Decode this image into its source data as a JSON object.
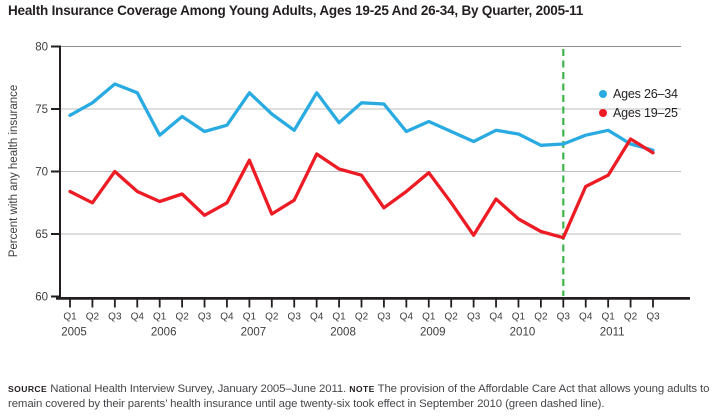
{
  "title": "Health Insurance Coverage Among Young Adults, Ages 19-25 And 26-34, By Quarter, 2005-11",
  "legend": {
    "items": [
      {
        "label": "Ages 26–34"
      },
      {
        "label": "Ages 19–25"
      }
    ]
  },
  "footer": {
    "source_label": "SOURCE",
    "source_text": "National Health Interview Survey, January 2005–June 2011.",
    "note_label": "NOTE",
    "note_text": "The provision of the Affordable Care Act that allows young adults to remain covered by their parents’ health insurance until age twenty-six took effect in September 2010 (green dashed line)."
  },
  "chart_data": {
    "type": "line",
    "title": "Health Insurance Coverage Among Young Adults, Ages 19-25 And 26-34, By Quarter, 2005-11",
    "xlabel": "",
    "ylabel": "Percent with any health insurance",
    "ylim": [
      60,
      80
    ],
    "yticks": [
      60,
      65,
      70,
      75,
      80
    ],
    "grid": "horizontal",
    "legend_position": "top-right",
    "categories": [
      "2005 Q1",
      "2005 Q2",
      "2005 Q3",
      "2005 Q4",
      "2006 Q1",
      "2006 Q2",
      "2006 Q3",
      "2006 Q4",
      "2007 Q1",
      "2007 Q2",
      "2007 Q3",
      "2007 Q4",
      "2008 Q1",
      "2008 Q2",
      "2008 Q3",
      "2008 Q4",
      "2009 Q1",
      "2009 Q2",
      "2009 Q3",
      "2009 Q4",
      "2010 Q1",
      "2010 Q2",
      "2010 Q3",
      "2010 Q4",
      "2011 Q1",
      "2011 Q2",
      "2011 Q3"
    ],
    "series": [
      {
        "name": "Ages 26–34",
        "color": "#29abe2",
        "values": [
          74.5,
          75.5,
          77.0,
          76.3,
          72.9,
          74.4,
          73.2,
          73.7,
          76.3,
          74.6,
          73.3,
          76.3,
          73.9,
          75.5,
          75.4,
          73.2,
          74.0,
          73.2,
          72.4,
          73.3,
          73.0,
          72.1,
          72.2,
          72.9,
          73.3,
          72.2,
          71.7
        ]
      },
      {
        "name": "Ages 19–25",
        "color": "#ed1c24",
        "values": [
          68.4,
          67.5,
          70.0,
          68.4,
          67.6,
          68.2,
          66.5,
          67.5,
          70.9,
          66.6,
          67.7,
          71.4,
          70.2,
          69.7,
          67.1,
          68.4,
          69.9,
          67.5,
          64.9,
          67.8,
          66.2,
          65.2,
          64.7,
          68.8,
          69.7,
          72.6,
          71.5
        ]
      }
    ],
    "event_line": {
      "index": 22,
      "category": "2010 Q3",
      "color": "#3db54a",
      "style": "dashed"
    }
  }
}
